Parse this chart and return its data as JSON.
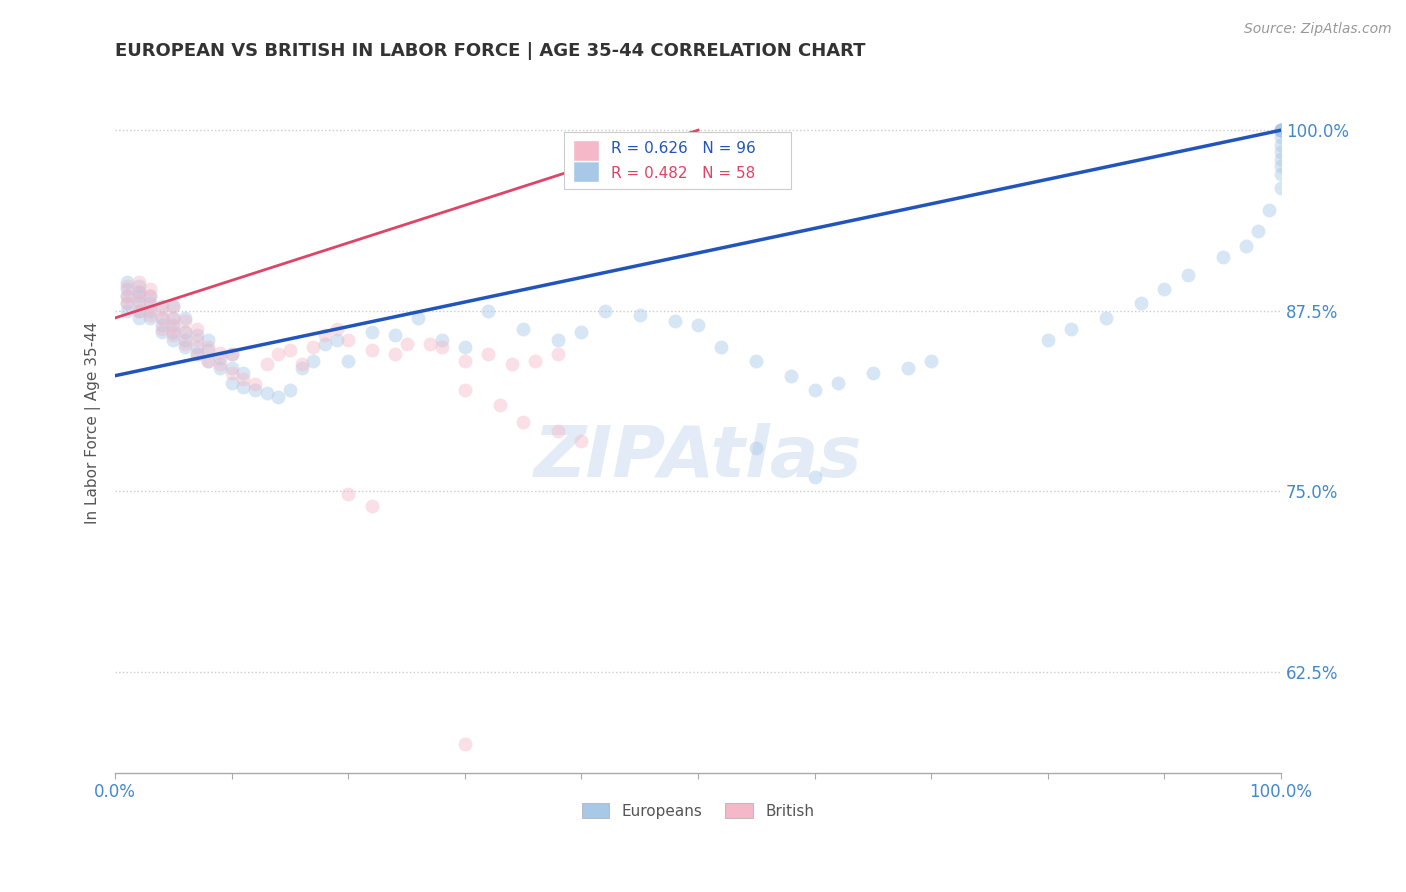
{
  "title": "EUROPEAN VS BRITISH IN LABOR FORCE | AGE 35-44 CORRELATION CHART",
  "source_text": "Source: ZipAtlas.com",
  "ylabel": "In Labor Force | Age 35-44",
  "xlim": [
    0.0,
    1.0
  ],
  "ylim": [
    0.555,
    1.04
  ],
  "yticks": [
    0.625,
    0.75,
    0.875,
    1.0
  ],
  "ytick_labels": [
    "62.5%",
    "75.0%",
    "87.5%",
    "100.0%"
  ],
  "xtick_positions": [
    0.0,
    0.1,
    0.2,
    0.3,
    0.4,
    0.5,
    0.6,
    0.7,
    0.8,
    0.9,
    1.0
  ],
  "blue_color": "#a8c8e8",
  "pink_color": "#f4b8c8",
  "blue_line_color": "#2255bb",
  "pink_line_color": "#dd4466",
  "R_blue": 0.626,
  "N_blue": 96,
  "R_pink": 0.482,
  "N_pink": 58,
  "blue_scatter_x": [
    0.01,
    0.01,
    0.01,
    0.01,
    0.01,
    0.02,
    0.02,
    0.02,
    0.02,
    0.02,
    0.02,
    0.03,
    0.03,
    0.03,
    0.03,
    0.04,
    0.04,
    0.04,
    0.04,
    0.05,
    0.05,
    0.05,
    0.05,
    0.05,
    0.06,
    0.06,
    0.06,
    0.06,
    0.07,
    0.07,
    0.07,
    0.08,
    0.08,
    0.08,
    0.09,
    0.09,
    0.1,
    0.1,
    0.1,
    0.11,
    0.11,
    0.12,
    0.13,
    0.14,
    0.15,
    0.16,
    0.17,
    0.18,
    0.19,
    0.2,
    0.22,
    0.24,
    0.26,
    0.28,
    0.3,
    0.32,
    0.35,
    0.38,
    0.4,
    0.42,
    0.45,
    0.48,
    0.5,
    0.52,
    0.55,
    0.58,
    0.6,
    0.62,
    0.65,
    0.68,
    0.7,
    0.55,
    0.6,
    0.8,
    0.82,
    0.85,
    0.88,
    0.9,
    0.92,
    0.95,
    0.97,
    0.98,
    0.99,
    1.0,
    1.0,
    1.0,
    1.0,
    1.0,
    1.0,
    1.0,
    1.0,
    1.0,
    1.0,
    1.0,
    1.0,
    1.0
  ],
  "blue_scatter_y": [
    0.875,
    0.88,
    0.885,
    0.89,
    0.895,
    0.87,
    0.875,
    0.88,
    0.885,
    0.888,
    0.892,
    0.87,
    0.875,
    0.88,
    0.885,
    0.86,
    0.865,
    0.87,
    0.878,
    0.855,
    0.86,
    0.865,
    0.87,
    0.878,
    0.85,
    0.855,
    0.86,
    0.87,
    0.845,
    0.85,
    0.858,
    0.84,
    0.848,
    0.855,
    0.835,
    0.842,
    0.825,
    0.835,
    0.845,
    0.822,
    0.832,
    0.82,
    0.818,
    0.815,
    0.82,
    0.835,
    0.84,
    0.852,
    0.855,
    0.84,
    0.86,
    0.858,
    0.87,
    0.855,
    0.85,
    0.875,
    0.862,
    0.855,
    0.86,
    0.875,
    0.872,
    0.868,
    0.865,
    0.85,
    0.84,
    0.83,
    0.82,
    0.825,
    0.832,
    0.835,
    0.84,
    0.78,
    0.76,
    0.855,
    0.862,
    0.87,
    0.88,
    0.89,
    0.9,
    0.912,
    0.92,
    0.93,
    0.945,
    0.96,
    0.97,
    0.975,
    0.98,
    0.985,
    0.99,
    0.995,
    1.0,
    1.0,
    1.0,
    1.0,
    1.0,
    1.0
  ],
  "pink_scatter_x": [
    0.01,
    0.01,
    0.01,
    0.02,
    0.02,
    0.02,
    0.02,
    0.03,
    0.03,
    0.03,
    0.03,
    0.04,
    0.04,
    0.04,
    0.05,
    0.05,
    0.05,
    0.05,
    0.06,
    0.06,
    0.06,
    0.07,
    0.07,
    0.07,
    0.08,
    0.08,
    0.09,
    0.09,
    0.1,
    0.1,
    0.11,
    0.12,
    0.13,
    0.14,
    0.15,
    0.16,
    0.17,
    0.18,
    0.19,
    0.2,
    0.22,
    0.24,
    0.25,
    0.27,
    0.28,
    0.3,
    0.32,
    0.34,
    0.36,
    0.38,
    0.3,
    0.33,
    0.35,
    0.38,
    0.4,
    0.2,
    0.22,
    0.3
  ],
  "pink_scatter_y": [
    0.88,
    0.885,
    0.892,
    0.875,
    0.882,
    0.888,
    0.895,
    0.872,
    0.878,
    0.885,
    0.89,
    0.862,
    0.87,
    0.876,
    0.858,
    0.864,
    0.87,
    0.878,
    0.852,
    0.86,
    0.868,
    0.845,
    0.855,
    0.862,
    0.84,
    0.85,
    0.838,
    0.846,
    0.832,
    0.845,
    0.828,
    0.824,
    0.838,
    0.845,
    0.848,
    0.838,
    0.85,
    0.858,
    0.862,
    0.855,
    0.848,
    0.845,
    0.852,
    0.852,
    0.85,
    0.84,
    0.845,
    0.838,
    0.84,
    0.845,
    0.82,
    0.81,
    0.798,
    0.792,
    0.785,
    0.748,
    0.74,
    0.575
  ],
  "blue_line_x": [
    0.0,
    1.0
  ],
  "blue_line_y": [
    0.83,
    1.0
  ],
  "pink_line_x": [
    0.0,
    0.5
  ],
  "pink_line_y": [
    0.87,
    1.0
  ],
  "background_color": "#ffffff",
  "grid_color": "#cccccc",
  "title_color": "#333333",
  "axis_label_color": "#555555",
  "tick_label_color": "#4488cc",
  "legend_blue_label": "Europeans",
  "legend_pink_label": "British",
  "marker_size": 100,
  "alpha": 0.45
}
